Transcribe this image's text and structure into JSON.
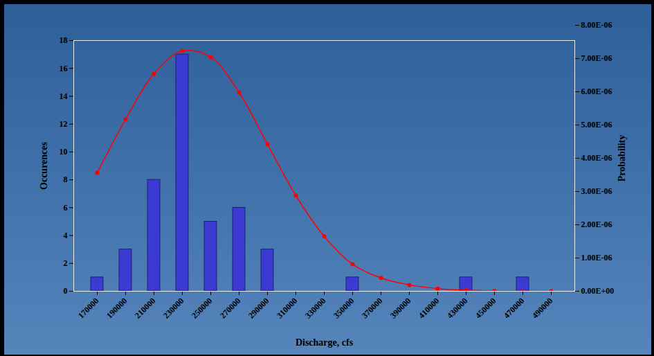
{
  "chart_data": {
    "type": "bar",
    "x_label": "Discharge, cfs",
    "y_label": "Occurences",
    "y2_label": "Probability",
    "categories": [
      "170000",
      "190000",
      "210000",
      "230000",
      "250000",
      "270000",
      "290000",
      "310000",
      "330000",
      "350000",
      "370000",
      "390000",
      "410000",
      "430000",
      "450000",
      "470000",
      "490000"
    ],
    "series": [
      {
        "type": "bar",
        "color": "#3b3bd4",
        "values": [
          1,
          3,
          8,
          17,
          5,
          6,
          3,
          0,
          0,
          1,
          0,
          0,
          0,
          1,
          0,
          1,
          0
        ]
      },
      {
        "type": "line",
        "axis": "y2",
        "color": "#ff0000",
        "marker": "circle",
        "values": [
          3.56e-06,
          5.17e-06,
          6.54e-06,
          7.23e-06,
          7.04e-06,
          5.98e-06,
          4.42e-06,
          2.88e-06,
          1.65e-06,
          8.1e-07,
          4e-07,
          1.9e-07,
          8e-08,
          3e-08,
          1e-08,
          4e-09,
          1e-09
        ]
      }
    ],
    "ylim": [
      0,
      18
    ],
    "yticks": [
      0,
      2,
      4,
      6,
      8,
      10,
      12,
      14,
      16,
      18
    ],
    "y2lim": [
      0,
      8e-06
    ],
    "y2ticks": [
      {
        "value": 0,
        "label": "0.00E+00"
      },
      {
        "value": 1e-06,
        "label": "1.00E-06"
      },
      {
        "value": 2e-06,
        "label": "2.00E-06"
      },
      {
        "value": 3e-06,
        "label": "3.00E-06"
      },
      {
        "value": 4e-06,
        "label": "4.00E-06"
      },
      {
        "value": 5e-06,
        "label": "5.00E-06"
      },
      {
        "value": 6e-06,
        "label": "6.00E-06"
      },
      {
        "value": 7e-06,
        "label": "7.00E-06"
      },
      {
        "value": 8e-06,
        "label": "8.00E-06"
      }
    ],
    "grid": false
  }
}
